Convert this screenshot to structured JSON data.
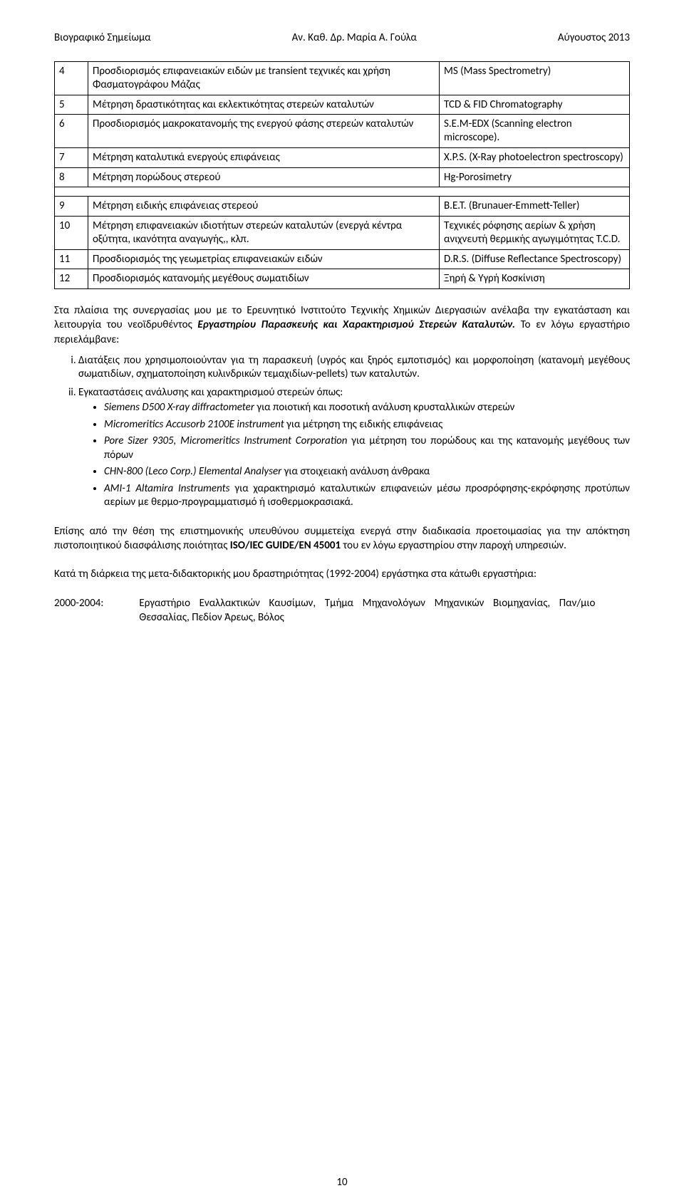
{
  "header": {
    "left": "Βιογραφικό Σημείωμα",
    "center": "Αν. Καθ. Δρ. Μαρία Α. Γούλα",
    "right": "Αύγουστος 2013"
  },
  "table": {
    "rows": [
      {
        "n": "4",
        "c1": "Προσδιορισμός επιφανειακών ειδών με transient τεχνικές  και χρήση Φασματογράφου Μάζας",
        "c2": "MS (Mass Spectrometry)"
      },
      {
        "n": "5",
        "c1": "Μέτρηση δραστικότητας και εκλεκτικότητας στερεών καταλυτών",
        "c2": "TCD & FID Chromatography"
      },
      {
        "n": "6",
        "c1": "Προσδιορισμός μακροκατανομής της ενεργού φάσης στερεών καταλυτών",
        "c2": "S.E.M-EDX (Scanning electron microscope)."
      },
      {
        "n": "7",
        "c1": "Μέτρηση καταλυτικά ενεργούς επιφάνειας",
        "c2": "X.P.S. (X-Ray photoelectron spectroscopy)"
      },
      {
        "n": "8",
        "c1": "Μέτρηση πορώδους στερεού",
        "c2": "Hg-Porosimetry"
      },
      {
        "n": "9",
        "c1": "Μέτρηση ειδικής επιφάνειας στερεού",
        "c2": "B.E.T. (Brunauer-Emmett-Teller)"
      },
      {
        "n": "10",
        "c1": "Μέτρηση επιφανειακών ιδιοτήτων στερεών καταλυτών (ενεργά κέντρα οξύτητα, ικανότητα αναγωγής,, κλπ.",
        "c2": "Τεχνικές ρόφησης αερίων & χρήση ανιχνευτή θερμικής αγωγιμότητας T.C.D."
      },
      {
        "n": "11",
        "c1": "Προσδιορισμός της γεωμετρίας επιφανειακών ειδών",
        "c2": "D.R.S. (Diffuse Reflectance Spectroscopy)"
      },
      {
        "n": "12",
        "c1": "Προσδιορισμός κατανομής μεγέθους σωματιδίων",
        "c2": "Ξηρή & Υγρή Κοσκίνιση"
      }
    ],
    "gap_after_index": 4
  },
  "para1": {
    "pre": "Στα πλαίσια της συνεργασίας μου με το Ερευνητικό Ινστιτούτο Τεχνικής Χημικών Διεργασιών ανέλαβα την εγκατάσταση και λειτουργία του νεοϊδρυθέντος ",
    "boldit": "Εργαστηρίου Παρασκευής και Χαρακτηρισμού Στερεών Καταλυτών.",
    "post": " Το εν λόγω εργαστήριο περιελάμβανε:"
  },
  "list": {
    "i": "Διατάξεις που χρησιμοποιούνταν για τη παρασκευή (υγρός και ξηρός εμποτισμός) και μορφοποίηση (κατανομή μεγέθους σωματιδίων, σχηματοποίηση κυλινδρικών τεμαχιδίων-pellets) των καταλυτών.",
    "ii": "Εγκαταστάσεις ανάλυσης και χαρακτηρισμού στερεών  όπως:",
    "bullets": [
      {
        "it": "Siemens D500 X-ray diffractometer ",
        "tx": " για ποιοτική και ποσοτική ανάλυση κρυσταλλικών στερεών"
      },
      {
        "it": "Micromeritics Accusorb 2100E instrument",
        "tx": " για μέτρηση της ειδικής επιφάνειας"
      },
      {
        "it": "Pore Sizer 9305, Micromeritics Instrument Corporation",
        "tx": " για μέτρηση του πορώδους και της κατανομής μεγέθους των πόρων"
      },
      {
        "it": "CHN-800 (Leco Corp.) Elemental Analyser",
        "tx": " για στοιχειακή ανάλυση άνθρακα"
      },
      {
        "it": "AMI-1 Altamira Instruments",
        "tx": " για χαρακτηρισμό καταλυτικών επιφανειών μέσω προσρόφησης-εκρόφησης προτύπων αερίων με θερμο-προγραμματισμό ή ισοθερμοκρασιακά."
      }
    ]
  },
  "para2": {
    "pre": "Επίσης από την θέση της επιστημονικής υπευθύνου συμμετείχα ενεργά στην διαδικασία προετοιμασίας για την απόκτηση πιστοποιητικού διασφάλισης ποιότητας ",
    "bold": "ISO/IEC GUIDE/EN 45001",
    "post": " του εν λόγω εργαστηρίου στην παροχή υπηρεσιών."
  },
  "para3": "Κατά τη διάρκεια της μετα-διδακτορικής μου δραστηριότητας (1992-2004) εργάστηκα στα κάτωθι εργαστήρια:",
  "years": {
    "y": "2000-2004:",
    "txt": "Εργαστήριο Εναλλακτικών Καυσίμων, Τμήμα Μηχανολόγων Μηχανικών Βιομηχανίας, Παν/μιο Θεσσαλίας, Πεδίον Άρεως, Βόλος"
  },
  "pagenum": "10"
}
